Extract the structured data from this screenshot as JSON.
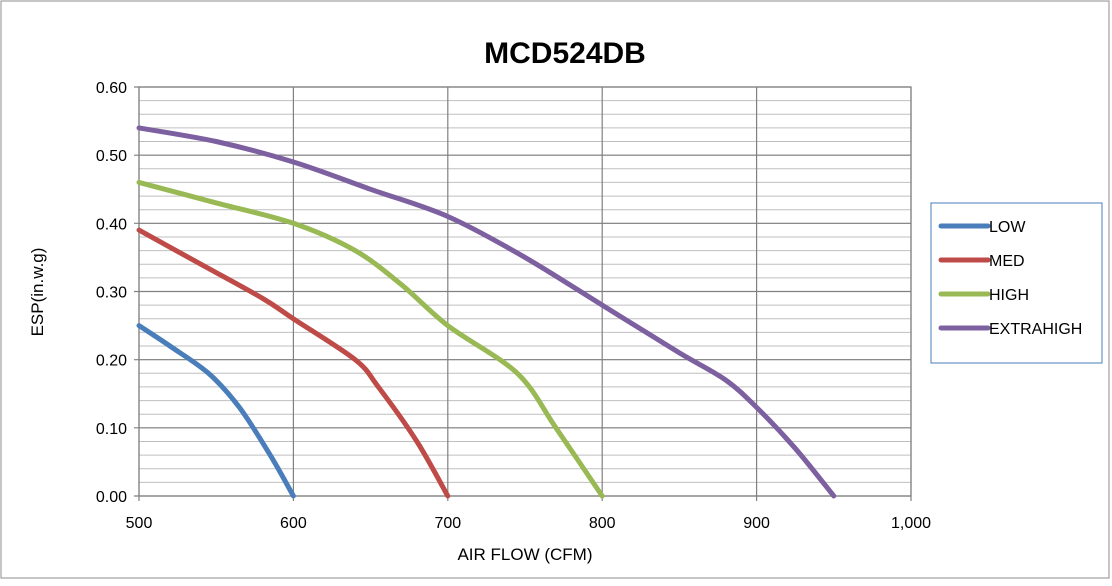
{
  "chart_data": {
    "type": "line",
    "title": "MCD524DB",
    "xlabel": "AIR FLOW (CFM)",
    "ylabel": "ESP(in.w.g)",
    "xlim": [
      500,
      1000
    ],
    "ylim": [
      0,
      0.6
    ],
    "x_ticks": [
      500,
      600,
      700,
      800,
      900,
      1000
    ],
    "x_tick_labels": [
      "500",
      "600",
      "700",
      "800",
      "900",
      "1,000"
    ],
    "y_ticks": [
      0,
      0.1,
      0.2,
      0.3,
      0.4,
      0.5,
      0.6
    ],
    "y_tick_labels": [
      "0.00",
      "0.10",
      "0.20",
      "0.30",
      "0.40",
      "0.50",
      "0.60"
    ],
    "grid": {
      "major": true,
      "minor_y_step": 0.02
    },
    "legend_position": "right",
    "series": [
      {
        "name": "LOW",
        "color": "#4a7ebb",
        "points": [
          [
            500,
            0.25
          ],
          [
            520,
            0.22
          ],
          [
            545,
            0.18
          ],
          [
            565,
            0.13
          ],
          [
            585,
            0.06
          ],
          [
            600,
            0.0
          ]
        ]
      },
      {
        "name": "MED",
        "color": "#be4b48",
        "points": [
          [
            500,
            0.39
          ],
          [
            540,
            0.34
          ],
          [
            580,
            0.29
          ],
          [
            600,
            0.26
          ],
          [
            640,
            0.2
          ],
          [
            655,
            0.16
          ],
          [
            680,
            0.08
          ],
          [
            700,
            0.0
          ]
        ]
      },
      {
        "name": "HIGH",
        "color": "#98b954",
        "points": [
          [
            500,
            0.46
          ],
          [
            550,
            0.43
          ],
          [
            600,
            0.4
          ],
          [
            640,
            0.36
          ],
          [
            670,
            0.31
          ],
          [
            700,
            0.25
          ],
          [
            745,
            0.18
          ],
          [
            770,
            0.1
          ],
          [
            800,
            0.0
          ]
        ]
      },
      {
        "name": "EXTRAHIGH",
        "color": "#7d60a0",
        "points": [
          [
            500,
            0.54
          ],
          [
            550,
            0.52
          ],
          [
            600,
            0.49
          ],
          [
            650,
            0.45
          ],
          [
            700,
            0.41
          ],
          [
            750,
            0.35
          ],
          [
            800,
            0.28
          ],
          [
            850,
            0.21
          ],
          [
            880,
            0.17
          ],
          [
            900,
            0.13
          ],
          [
            925,
            0.07
          ],
          [
            950,
            0.0
          ]
        ]
      }
    ]
  }
}
